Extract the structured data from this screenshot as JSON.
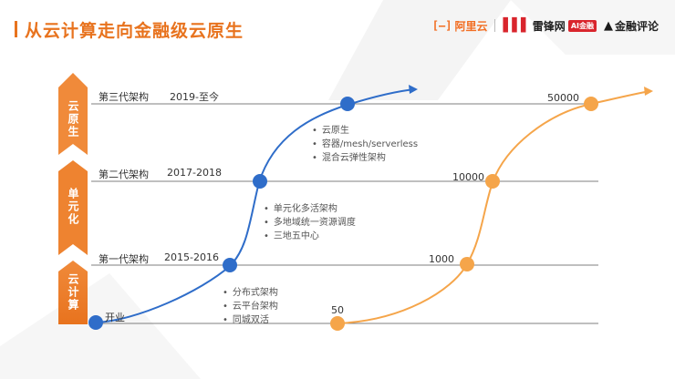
{
  "title": "从云计算走向金融级云原生",
  "logos": {
    "aliyun": "阿里云",
    "leifeng": "雷锋网",
    "leifeng_badge": "AI金融",
    "jinrong": "金融评论"
  },
  "stages": {
    "cloud_native": "云原生",
    "unitization": "单元化",
    "cloud_computing": "云计算"
  },
  "generations": [
    {
      "label": "第三代架构",
      "years": "2019-至今"
    },
    {
      "label": "第二代架构",
      "years": "2017-2018"
    },
    {
      "label": "第一代架构",
      "years": "2015-2016"
    }
  ],
  "start_label": "开业",
  "bullets": {
    "gen3": [
      "云原生",
      "容器/mesh/serverless",
      "混合云弹性架构"
    ],
    "gen2": [
      "单元化多活架构",
      "多地域统一资源调度",
      "三地五中心"
    ],
    "gen1": [
      "分布式架构",
      "云平台架构",
      "同城双活"
    ]
  },
  "values": [
    "50",
    "1000",
    "10000",
    "50000"
  ],
  "colors": {
    "accent": "#e8731e",
    "blue": "#2f6dc9",
    "orange_curve": "#f5a54a"
  }
}
